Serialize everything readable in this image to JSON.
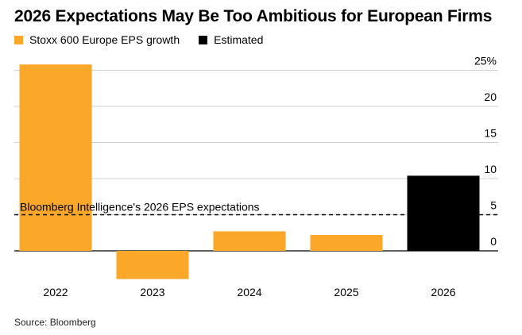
{
  "title": "2026 Expectations May Be Too Ambitious for European Firms",
  "legend": [
    {
      "label": "Stoxx 600 Europe EPS growth",
      "color": "#fba72a"
    },
    {
      "label": "Estimated",
      "color": "#000000"
    }
  ],
  "source": "Source: Bloomberg",
  "chart_data": {
    "type": "bar",
    "categories": [
      "2022",
      "2023",
      "2024",
      "2025",
      "2026"
    ],
    "series": [
      {
        "name": "Stoxx 600 Europe EPS growth",
        "values": [
          25.8,
          -3.9,
          2.7,
          2.2,
          null
        ],
        "color": "#fba72a"
      },
      {
        "name": "Estimated",
        "values": [
          null,
          null,
          null,
          null,
          10.4
        ],
        "color": "#000000"
      }
    ],
    "ylim": [
      -4,
      25
    ],
    "yticks": [
      0,
      5,
      10,
      15,
      20,
      25
    ],
    "ytick_labels": [
      "0",
      "5",
      "10",
      "15",
      "20",
      "25%"
    ],
    "reference_line": {
      "label": "Bloomberg Intelligence's 2026 EPS expectations",
      "value": 5,
      "style": "dashed"
    },
    "grid": true,
    "y_axis_side": "right",
    "legend_position": "top-left"
  }
}
